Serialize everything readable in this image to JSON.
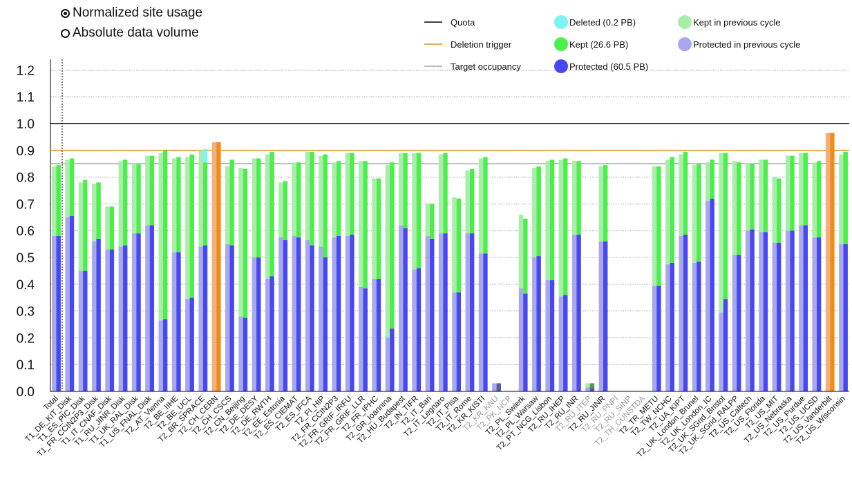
{
  "controls": {
    "mode_normalized": "Normalized site usage",
    "mode_absolute": "Absolute data volume",
    "selected": "normalized"
  },
  "colors": {
    "protected": "#4848f0",
    "protected_prev": "#a8a8ee",
    "kept": "#4cee4c",
    "kept_prev": "#a8eea8",
    "deleted": "#7ef3f3",
    "quota": "#000000",
    "trigger": "#e88a1e",
    "target": "#a0a0a0",
    "over_quota": "#f08a18",
    "over_quota_prev": "#f5b07a",
    "offline_label": "#9a9a9a"
  },
  "chart_data": {
    "type": "bar",
    "title": "",
    "xlabel": "",
    "ylabel": "",
    "ylim": [
      0,
      1.25
    ],
    "yticks": [
      "0.0",
      "0.1",
      "0.2",
      "0.3",
      "0.4",
      "0.5",
      "0.6",
      "0.7",
      "0.8",
      "0.9",
      "1.0",
      "1.1",
      "1.2"
    ],
    "legend": [
      {
        "label": "Quota",
        "kind": "line",
        "color": "#000000"
      },
      {
        "label": "Deletion trigger",
        "kind": "line",
        "color": "#e88a1e"
      },
      {
        "label": "Target occupancy",
        "kind": "line",
        "color": "#a0a0a0"
      },
      {
        "label": "Deleted (0.2 PB)",
        "kind": "dot",
        "color": "#7ef3f3"
      },
      {
        "label": "Kept (26.6 PB)",
        "kind": "dot",
        "color": "#4cee4c"
      },
      {
        "label": "Protected (60.5 PB)",
        "kind": "dot",
        "color": "#4848f0"
      },
      {
        "label": "Kept in previous cycle",
        "kind": "dot",
        "color": "#a8eea8"
      },
      {
        "label": "Protected in previous cycle",
        "kind": "dot",
        "color": "#a8a8ee"
      }
    ],
    "reference_lines": {
      "quota": 1.0,
      "deletion_trigger": 0.9,
      "target_occupancy": 0.85
    },
    "sites": [
      {
        "name": "Total",
        "prev_protected": 0.58,
        "prev_kept": 0.26,
        "protected": 0.58,
        "kept": 0.265,
        "deleted": 0
      },
      {
        "name": "T1_DE_KIT_Disk",
        "prev_protected": 0.65,
        "prev_kept": 0.215,
        "protected": 0.655,
        "kept": 0.215,
        "deleted": 0
      },
      {
        "name": "T1_ES_PIC_Disk",
        "prev_protected": 0.45,
        "prev_kept": 0.33,
        "protected": 0.45,
        "kept": 0.34,
        "deleted": 0
      },
      {
        "name": "T1_FR_CCIN2P3_Disk",
        "prev_protected": 0.56,
        "prev_kept": 0.215,
        "protected": 0.57,
        "kept": 0.21,
        "deleted": 0
      },
      {
        "name": "T1_IT_CNAF_Disk",
        "prev_protected": 0.53,
        "prev_kept": 0.16,
        "protected": 0.53,
        "kept": 0.16,
        "deleted": 0
      },
      {
        "name": "T1_RU_JINR_Disk",
        "prev_protected": 0.54,
        "prev_kept": 0.32,
        "protected": 0.545,
        "kept": 0.32,
        "deleted": 0
      },
      {
        "name": "T1_UK_RAL_Disk",
        "prev_protected": 0.59,
        "prev_kept": 0.26,
        "protected": 0.59,
        "kept": 0.26,
        "deleted": 0
      },
      {
        "name": "T1_US_FNAL_Disk",
        "prev_protected": 0.62,
        "prev_kept": 0.26,
        "protected": 0.62,
        "kept": 0.26,
        "deleted": 0
      },
      {
        "name": "T2_AT_Vienna",
        "prev_protected": 0.265,
        "prev_kept": 0.625,
        "protected": 0.27,
        "kept": 0.63,
        "deleted": 0
      },
      {
        "name": "T2_BE_IIHE",
        "prev_protected": 0.52,
        "prev_kept": 0.35,
        "protected": 0.52,
        "kept": 0.355,
        "deleted": 0
      },
      {
        "name": "T2_BE_UCL",
        "prev_protected": 0.345,
        "prev_kept": 0.53,
        "protected": 0.35,
        "kept": 0.535,
        "deleted": 0
      },
      {
        "name": "T2_BR_SPRACE",
        "prev_protected": 0.54,
        "prev_kept": 0.36,
        "protected": 0.545,
        "kept": 0.31,
        "deleted": 0.05
      },
      {
        "name": "T2_CH_CERN",
        "prev_protected": 0.93,
        "prev_kept": 0,
        "protected": 0.93,
        "kept": 0,
        "deleted": 0,
        "over": true
      },
      {
        "name": "T2_CH_CSCS",
        "prev_protected": 0.55,
        "prev_kept": 0.29,
        "protected": 0.545,
        "kept": 0.32,
        "deleted": 0
      },
      {
        "name": "T2_CN_Beijing",
        "prev_protected": 0.28,
        "prev_kept": 0.555,
        "protected": 0.275,
        "kept": 0.555,
        "deleted": 0
      },
      {
        "name": "T2_DE_DESY",
        "prev_protected": 0.5,
        "prev_kept": 0.37,
        "protected": 0.5,
        "kept": 0.37,
        "deleted": 0
      },
      {
        "name": "T2_DE_RWTH",
        "prev_protected": 0.42,
        "prev_kept": 0.465,
        "protected": 0.43,
        "kept": 0.465,
        "deleted": 0
      },
      {
        "name": "T2_EE_Estonia",
        "prev_protected": 0.575,
        "prev_kept": 0.205,
        "protected": 0.565,
        "kept": 0.22,
        "deleted": 0
      },
      {
        "name": "T2_ES_CIEMAT",
        "prev_protected": 0.58,
        "prev_kept": 0.275,
        "protected": 0.575,
        "kept": 0.28,
        "deleted": 0
      },
      {
        "name": "T2_ES_IFCA",
        "prev_protected": 0.565,
        "prev_kept": 0.33,
        "protected": 0.545,
        "kept": 0.35,
        "deleted": 0
      },
      {
        "name": "T2_FI_HIP",
        "prev_protected": 0.54,
        "prev_kept": 0.34,
        "protected": 0.5,
        "kept": 0.385,
        "deleted": 0
      },
      {
        "name": "T2_FR_CCIN2P3",
        "prev_protected": 0.575,
        "prev_kept": 0.28,
        "protected": 0.58,
        "kept": 0.28,
        "deleted": 0
      },
      {
        "name": "T2_FR_GRIF_IRFU",
        "prev_protected": 0.58,
        "prev_kept": 0.31,
        "protected": 0.585,
        "kept": 0.305,
        "deleted": 0
      },
      {
        "name": "T2_FR_GRIF_LLR",
        "prev_protected": 0.39,
        "prev_kept": 0.47,
        "protected": 0.385,
        "kept": 0.475,
        "deleted": 0
      },
      {
        "name": "T2_FR_IPHC",
        "prev_protected": 0.42,
        "prev_kept": 0.375,
        "protected": 0.42,
        "kept": 0.375,
        "deleted": 0
      },
      {
        "name": "T2_GR_Ioannina",
        "prev_protected": 0.2,
        "prev_kept": 0.645,
        "protected": 0.235,
        "kept": 0.62,
        "deleted": 0
      },
      {
        "name": "T2_HU_Budapest",
        "prev_protected": 0.62,
        "prev_kept": 0.27,
        "protected": 0.61,
        "kept": 0.28,
        "deleted": 0
      },
      {
        "name": "T2_IN_TIFR",
        "prev_protected": 0.455,
        "prev_kept": 0.435,
        "protected": 0.46,
        "kept": 0.43,
        "deleted": 0
      },
      {
        "name": "T2_IT_Bari",
        "prev_protected": 0.58,
        "prev_kept": 0.12,
        "protected": 0.57,
        "kept": 0.13,
        "deleted": 0
      },
      {
        "name": "T2_IT_Legnaro",
        "prev_protected": 0.59,
        "prev_kept": 0.295,
        "protected": 0.59,
        "kept": 0.3,
        "deleted": 0
      },
      {
        "name": "T2_IT_Pisa",
        "prev_protected": 0.37,
        "prev_kept": 0.355,
        "protected": 0.37,
        "kept": 0.35,
        "deleted": 0
      },
      {
        "name": "T2_IT_Rome",
        "prev_protected": 0.59,
        "prev_kept": 0.235,
        "protected": 0.59,
        "kept": 0.24,
        "deleted": 0
      },
      {
        "name": "T2_KR_KISTI",
        "prev_protected": 0.515,
        "prev_kept": 0.355,
        "protected": 0.515,
        "kept": 0.36,
        "deleted": 0
      },
      {
        "name": "T2_KR_KNU",
        "prev_protected": 0.03,
        "prev_kept": 0,
        "protected": 0.03,
        "kept": 0,
        "deleted": 0,
        "offline": true
      },
      {
        "name": "T2_PK_NCP",
        "prev_protected": 0,
        "prev_kept": 0,
        "protected": 0,
        "kept": 0,
        "deleted": 0,
        "offline": true
      },
      {
        "name": "T2_PL_Swierk",
        "prev_protected": 0.385,
        "prev_kept": 0.275,
        "protected": 0.365,
        "kept": 0.28,
        "deleted": 0
      },
      {
        "name": "T2_PL_Warsaw",
        "prev_protected": 0.5,
        "prev_kept": 0.335,
        "protected": 0.505,
        "kept": 0.335,
        "deleted": 0
      },
      {
        "name": "T2_PT_NCG_Lisbon",
        "prev_protected": 0.415,
        "prev_kept": 0.445,
        "protected": 0.415,
        "kept": 0.45,
        "deleted": 0
      },
      {
        "name": "T2_RU_IHEP",
        "prev_protected": 0.355,
        "prev_kept": 0.51,
        "protected": 0.36,
        "kept": 0.51,
        "deleted": 0
      },
      {
        "name": "T2_RU_INR",
        "prev_protected": 0.585,
        "prev_kept": 0.275,
        "protected": 0.585,
        "kept": 0.275,
        "deleted": 0
      },
      {
        "name": "T2_RU_ITEP",
        "prev_protected": 0.015,
        "prev_kept": 0.015,
        "protected": 0.015,
        "kept": 0.015,
        "deleted": 0,
        "offline": true
      },
      {
        "name": "T2_RU_JINR",
        "prev_protected": 0.56,
        "prev_kept": 0.28,
        "protected": 0.56,
        "kept": 0.285,
        "deleted": 0
      },
      {
        "name": "T2_RU_PNPI",
        "prev_protected": 0,
        "prev_kept": 0,
        "protected": 0,
        "kept": 0,
        "deleted": 0,
        "offline": true
      },
      {
        "name": "T2_RU_SINP",
        "prev_protected": 0,
        "prev_kept": 0,
        "protected": 0,
        "kept": 0,
        "deleted": 0,
        "offline": true
      },
      {
        "name": "T2_TH_CUNSTDA",
        "prev_protected": 0,
        "prev_kept": 0,
        "protected": 0,
        "kept": 0,
        "deleted": 0,
        "offline": true
      },
      {
        "name": "T2_TR_METU",
        "prev_protected": 0.395,
        "prev_kept": 0.445,
        "protected": 0.395,
        "kept": 0.445,
        "deleted": 0
      },
      {
        "name": "T2_TW_NCHC",
        "prev_protected": 0.475,
        "prev_kept": 0.39,
        "protected": 0.48,
        "kept": 0.395,
        "deleted": 0
      },
      {
        "name": "T2_UA_KIPT",
        "prev_protected": 0.58,
        "prev_kept": 0.305,
        "protected": 0.585,
        "kept": 0.31,
        "deleted": 0
      },
      {
        "name": "T2_UK_London_Brunel",
        "prev_protected": 0.48,
        "prev_kept": 0.365,
        "protected": 0.485,
        "kept": 0.365,
        "deleted": 0
      },
      {
        "name": "T2_UK_London_IC",
        "prev_protected": 0.71,
        "prev_kept": 0.145,
        "protected": 0.72,
        "kept": 0.145,
        "deleted": 0
      },
      {
        "name": "T2_UK_SGrid_Bristol",
        "prev_protected": 0.295,
        "prev_kept": 0.595,
        "protected": 0.345,
        "kept": 0.545,
        "deleted": 0
      },
      {
        "name": "T2_UK_SGrid_RALPP",
        "prev_protected": 0.51,
        "prev_kept": 0.35,
        "protected": 0.51,
        "kept": 0.345,
        "deleted": 0
      },
      {
        "name": "T2_US_Caltech",
        "prev_protected": 0.6,
        "prev_kept": 0.25,
        "protected": 0.605,
        "kept": 0.245,
        "deleted": 0
      },
      {
        "name": "T2_US_Florida",
        "prev_protected": 0.595,
        "prev_kept": 0.27,
        "protected": 0.595,
        "kept": 0.27,
        "deleted": 0
      },
      {
        "name": "T2_US_MIT",
        "prev_protected": 0.555,
        "prev_kept": 0.245,
        "protected": 0.555,
        "kept": 0.24,
        "deleted": 0
      },
      {
        "name": "T2_US_Nebraska",
        "prev_protected": 0.6,
        "prev_kept": 0.28,
        "protected": 0.6,
        "kept": 0.28,
        "deleted": 0
      },
      {
        "name": "T2_US_Purdue",
        "prev_protected": 0.62,
        "prev_kept": 0.27,
        "protected": 0.62,
        "kept": 0.27,
        "deleted": 0
      },
      {
        "name": "T2_US_UCSD",
        "prev_protected": 0.575,
        "prev_kept": 0.28,
        "protected": 0.575,
        "kept": 0.285,
        "deleted": 0
      },
      {
        "name": "T2_US_Vanderbilt",
        "prev_protected": 0.965,
        "prev_kept": 0,
        "protected": 0.965,
        "kept": 0,
        "deleted": 0,
        "over": true
      },
      {
        "name": "T2_US_Wisconsin",
        "prev_protected": 0.55,
        "prev_kept": 0.335,
        "protected": 0.55,
        "kept": 0.345,
        "deleted": 0
      }
    ]
  }
}
